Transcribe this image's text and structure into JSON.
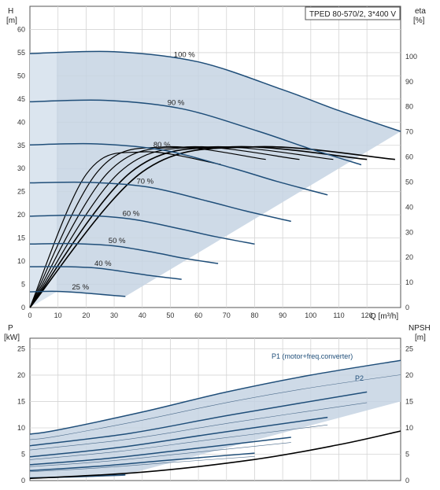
{
  "chart_data": [
    {
      "type": "line",
      "title": "TPED 80-570/2, 3*400 V",
      "ylabel": "H",
      "yunit": "[m]",
      "y2label": "eta",
      "y2unit": "[%]",
      "xlabel": "Q [m³/h]",
      "xlim": [
        0,
        132
      ],
      "ylim": [
        0,
        65
      ],
      "y2lim": [
        0,
        120
      ],
      "xticks": [
        "0",
        "10",
        "20",
        "30",
        "40",
        "50",
        "60",
        "70",
        "80",
        "90",
        "100",
        "110",
        "120"
      ],
      "yticks": [
        "0",
        "5",
        "10",
        "15",
        "20",
        "25",
        "30",
        "35",
        "40",
        "45",
        "50",
        "55",
        "60"
      ],
      "y2ticks": [
        "0",
        "10",
        "20",
        "30",
        "40",
        "50",
        "60",
        "70",
        "80",
        "90",
        "100"
      ],
      "grid": true,
      "colors": {
        "area": "#c5d3e3",
        "area_light": "#dbe5ef",
        "curve": "#1f4e79",
        "eta": "#000000"
      },
      "speed_labels": [
        "100 %",
        "90 %",
        "80 %",
        "70 %",
        "60 %",
        "50 %",
        "40 %",
        "25 %"
      ],
      "series": [
        {
          "name": "100 %",
          "x": [
            0,
            30,
            60,
            90,
            110,
            132
          ],
          "y": [
            54.8,
            55.2,
            53.0,
            47.0,
            42.5,
            38.0
          ]
        },
        {
          "name": "90 %",
          "x": [
            0,
            27,
            54,
            81,
            99,
            118
          ],
          "y": [
            44.4,
            44.7,
            42.9,
            38.1,
            34.4,
            30.8
          ]
        },
        {
          "name": "80 %",
          "x": [
            0,
            24,
            48,
            72,
            88,
            106
          ],
          "y": [
            35.1,
            35.3,
            33.9,
            30.1,
            27.2,
            24.3
          ]
        },
        {
          "name": "70 %",
          "x": [
            0,
            21,
            42,
            63,
            77,
            93
          ],
          "y": [
            26.9,
            27.0,
            26.0,
            23.0,
            20.8,
            18.6
          ]
        },
        {
          "name": "60 %",
          "x": [
            0,
            18,
            36,
            54,
            66,
            80
          ],
          "y": [
            19.7,
            19.9,
            19.1,
            16.9,
            15.3,
            13.7
          ]
        },
        {
          "name": "50 %",
          "x": [
            0,
            15,
            30,
            45,
            55,
            67
          ],
          "y": [
            13.7,
            13.8,
            13.3,
            11.8,
            10.6,
            9.5
          ]
        },
        {
          "name": "40 %",
          "x": [
            0,
            12,
            24,
            36,
            44,
            54
          ],
          "y": [
            8.8,
            8.8,
            8.5,
            7.5,
            6.8,
            6.1
          ]
        },
        {
          "name": "25 %",
          "x": [
            0,
            8,
            16,
            24,
            30,
            34
          ],
          "y": [
            3.4,
            3.5,
            3.3,
            2.9,
            2.6,
            2.4
          ]
        }
      ],
      "eta_series": [
        {
          "x": [
            0,
            40,
            80,
            130
          ],
          "y": [
            0,
            54,
            64,
            59
          ]
        },
        {
          "x": [
            0,
            36,
            72,
            120
          ],
          "y": [
            0,
            54,
            64,
            59
          ]
        },
        {
          "x": [
            0,
            32,
            64,
            108
          ],
          "y": [
            0,
            54,
            64,
            59
          ]
        },
        {
          "x": [
            0,
            28,
            56,
            96
          ],
          "y": [
            0,
            54,
            64,
            59
          ]
        },
        {
          "x": [
            0,
            24,
            48,
            84
          ],
          "y": [
            0,
            54,
            64,
            59
          ]
        },
        {
          "x": [
            0,
            20,
            40,
            68
          ],
          "y": [
            0,
            53,
            62,
            57
          ]
        }
      ]
    },
    {
      "type": "line",
      "ylabel": "P",
      "yunit": "[kW]",
      "y2label": "NPSH",
      "y2unit": "[m]",
      "xlim": [
        0,
        132
      ],
      "ylim": [
        0,
        27
      ],
      "y2lim": [
        0,
        27
      ],
      "yticks": [
        "0",
        "5",
        "10",
        "15",
        "20",
        "25"
      ],
      "y2ticks": [
        "0",
        "5",
        "10",
        "15",
        "20",
        "25"
      ],
      "grid": true,
      "annotations": [
        "P1 (motor+freq.converter)",
        "P2"
      ],
      "series": [
        {
          "name": "P1 (motor+freq.converter)",
          "x": [
            0,
            10,
            40,
            70,
            100,
            132
          ],
          "y": [
            8.8,
            9.6,
            13.0,
            16.8,
            20.0,
            22.8
          ]
        },
        {
          "x": [
            0,
            36,
            72,
            120
          ],
          "y": [
            6.6,
            9.0,
            12.5,
            16.8
          ]
        },
        {
          "x": [
            0,
            32,
            64,
            106
          ],
          "y": [
            4.5,
            6.3,
            8.8,
            12.0
          ]
        },
        {
          "x": [
            0,
            28,
            56,
            93
          ],
          "y": [
            3.0,
            4.2,
            5.9,
            8.2
          ]
        },
        {
          "x": [
            0,
            24,
            48,
            80
          ],
          "y": [
            1.9,
            2.7,
            3.8,
            5.2
          ]
        },
        {
          "x": [
            0,
            15,
            30,
            34
          ],
          "y": [
            0.5,
            0.7,
            1.0,
            1.1
          ]
        }
      ],
      "npsh": {
        "x": [
          0,
          40,
          80,
          110,
          132
        ],
        "y": [
          0.4,
          1.6,
          4.0,
          6.8,
          9.4
        ]
      }
    }
  ]
}
